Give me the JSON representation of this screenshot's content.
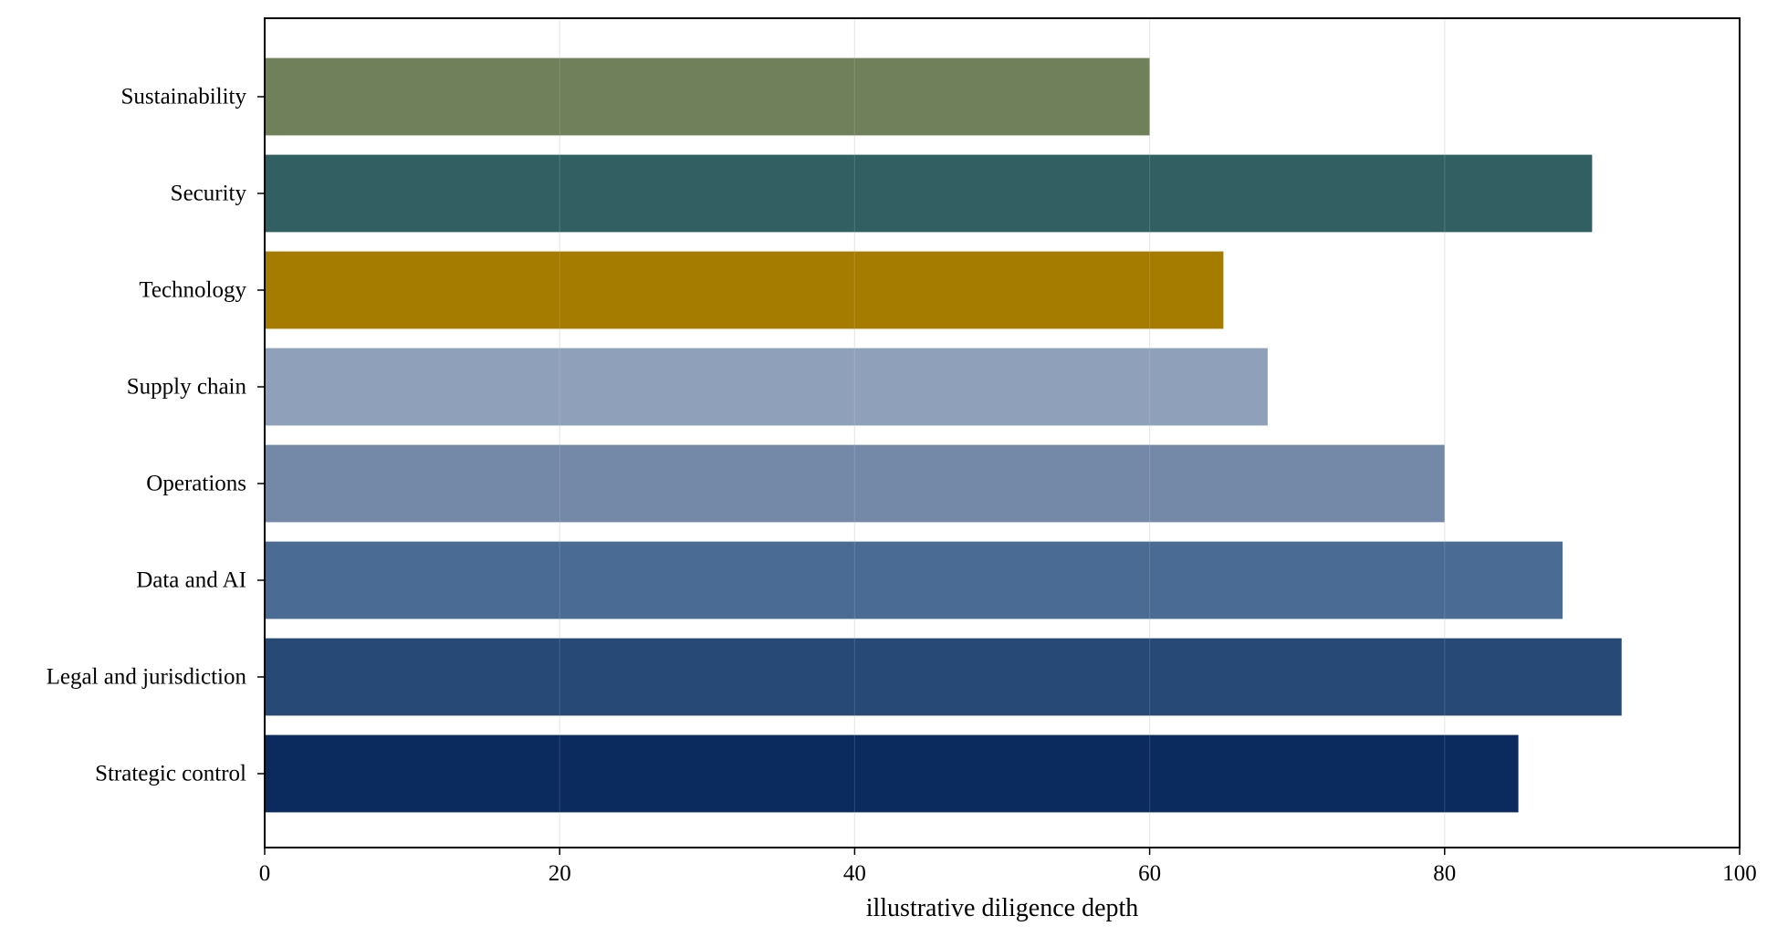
{
  "chart_data": {
    "type": "bar",
    "orientation": "horizontal",
    "title": "",
    "xlabel": "illustrative diligence depth",
    "ylabel": "",
    "xlim": [
      0,
      100
    ],
    "xticks": [
      0,
      20,
      40,
      60,
      80,
      100
    ],
    "grid": true,
    "categories": [
      "Strategic control",
      "Legal and jurisdiction",
      "Data and AI",
      "Operations",
      "Supply chain",
      "Technology",
      "Security",
      "Sustainability"
    ],
    "values": [
      85,
      92,
      88,
      80,
      68,
      65,
      90,
      60
    ],
    "colors": [
      "#0b2a5e",
      "#264a75",
      "#4a6c94",
      "#7489a8",
      "#8fa0ba",
      "#a57c00",
      "#326062",
      "#70805a"
    ]
  }
}
